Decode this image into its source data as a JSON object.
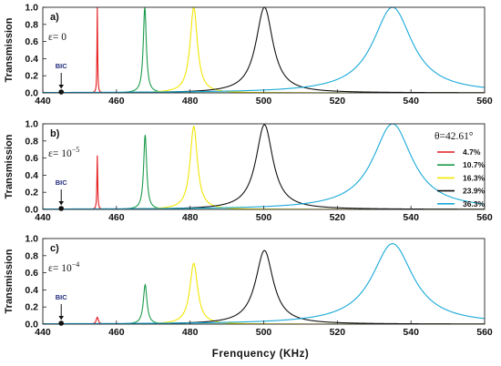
{
  "chart_data": [
    {
      "type": "line",
      "panel_label": "a)",
      "annotation": "ε= 0",
      "bic_label": "BIC",
      "bic_x": 445,
      "ylabel": "Transmission",
      "xlim": [
        440,
        560
      ],
      "ylim": [
        0,
        1.0
      ],
      "xticks": [
        "440",
        "460",
        "480",
        "500",
        "520",
        "540",
        "560"
      ],
      "yticks": [
        "0.0",
        "0.2",
        "0.4",
        "0.6",
        "0.8",
        "1.0"
      ],
      "series": [
        {
          "name": "4.7%",
          "color": "#e41a1c",
          "center": 454.8,
          "hwhm": 0.1,
          "peak": 1.0
        },
        {
          "name": "10.7%",
          "color": "#1a9a4a",
          "center": 467.7,
          "hwhm": 0.5,
          "peak": 1.0
        },
        {
          "name": "16.3%",
          "color": "#f2e600",
          "center": 481.0,
          "hwhm": 1.2,
          "peak": 1.0
        },
        {
          "name": "23.9%",
          "color": "#111111",
          "center": 500.2,
          "hwhm": 2.8,
          "peak": 1.0
        },
        {
          "name": "36.3%",
          "color": "#17a9d8",
          "center": 535.0,
          "hwhm": 6.5,
          "peak": 1.0
        }
      ]
    },
    {
      "type": "line",
      "panel_label": "b)",
      "annotation": "ε= 10",
      "annotation_exp": "−5",
      "bic_label": "BIC",
      "bic_x": 445,
      "ylabel": "Transmission",
      "xlim": [
        440,
        560
      ],
      "ylim": [
        0,
        1.0
      ],
      "xticks": [
        "440",
        "460",
        "480",
        "500",
        "520",
        "540",
        "560"
      ],
      "yticks": [
        "0.0",
        "0.2",
        "0.4",
        "0.6",
        "0.8",
        "1.0"
      ],
      "series": [
        {
          "name": "4.7%",
          "color": "#e41a1c",
          "center": 454.8,
          "hwhm": 0.12,
          "peak": 0.63
        },
        {
          "name": "10.7%",
          "color": "#1a9a4a",
          "center": 467.8,
          "hwhm": 0.5,
          "peak": 0.87
        },
        {
          "name": "16.3%",
          "color": "#f2e600",
          "center": 481.0,
          "hwhm": 1.2,
          "peak": 0.97
        },
        {
          "name": "23.9%",
          "color": "#111111",
          "center": 500.2,
          "hwhm": 2.8,
          "peak": 0.99
        },
        {
          "name": "36.3%",
          "color": "#17a9d8",
          "center": 535.0,
          "hwhm": 6.5,
          "peak": 1.0
        }
      ]
    },
    {
      "type": "line",
      "panel_label": "c)",
      "annotation": "ε= 10",
      "annotation_exp": "−4",
      "bic_label": "BIC",
      "bic_x": 445,
      "ylabel": "Transmission",
      "xlim": [
        440,
        560
      ],
      "ylim": [
        0,
        1.0
      ],
      "xticks": [
        "440",
        "460",
        "480",
        "500",
        "520",
        "540",
        "560"
      ],
      "yticks": [
        "0.0",
        "0.2",
        "0.4",
        "0.6",
        "0.8",
        "1.0"
      ],
      "series": [
        {
          "name": "4.7%",
          "color": "#e41a1c",
          "center": 454.8,
          "hwhm": 0.35,
          "peak": 0.08
        },
        {
          "name": "10.7%",
          "color": "#1a9a4a",
          "center": 467.8,
          "hwhm": 0.6,
          "peak": 0.46
        },
        {
          "name": "16.3%",
          "color": "#f2e600",
          "center": 481.0,
          "hwhm": 1.3,
          "peak": 0.71
        },
        {
          "name": "23.9%",
          "color": "#111111",
          "center": 500.2,
          "hwhm": 2.9,
          "peak": 0.86
        },
        {
          "name": "36.3%",
          "color": "#17a9d8",
          "center": 535.0,
          "hwhm": 6.8,
          "peak": 0.94
        }
      ]
    }
  ],
  "xlabel": "Frenquency (KHz)",
  "legend": {
    "title": "θ=42.61°",
    "entries": [
      {
        "label": "4.7%",
        "color": "#e41a1c"
      },
      {
        "label": "10.7%",
        "color": "#1a9a4a"
      },
      {
        "label": "16.3%",
        "color": "#f2e600"
      },
      {
        "label": "23.9%",
        "color": "#111111"
      },
      {
        "label": "36.3%",
        "color": "#17a9d8"
      }
    ]
  }
}
